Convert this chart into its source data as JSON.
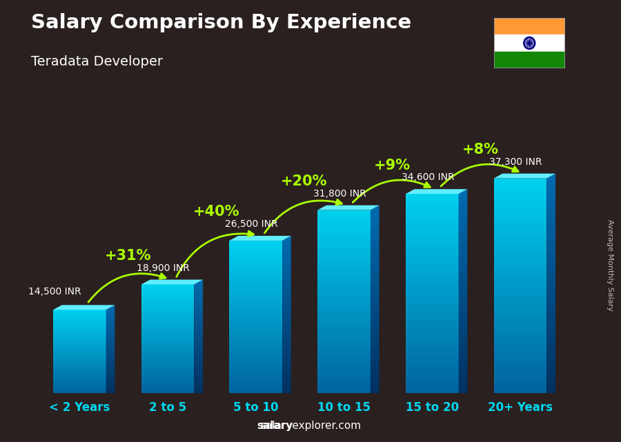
{
  "title": "Salary Comparison By Experience",
  "subtitle": "Teradata Developer",
  "categories": [
    "< 2 Years",
    "2 to 5",
    "5 to 10",
    "10 to 15",
    "15 to 20",
    "20+ Years"
  ],
  "values": [
    14500,
    18900,
    26500,
    31800,
    34600,
    37300
  ],
  "labels": [
    "14,500 INR",
    "18,900 INR",
    "26,500 INR",
    "31,800 INR",
    "34,600 INR",
    "37,300 INR"
  ],
  "pct_changes": [
    "+31%",
    "+40%",
    "+20%",
    "+9%",
    "+8%"
  ],
  "bar_color_face": "#00c8e8",
  "bar_color_left": "#00a8c8",
  "bar_color_top": "#80eeff",
  "bar_color_right": "#0060a0",
  "bg_color": "#2a2020",
  "title_color": "#ffffff",
  "subtitle_color": "#ffffff",
  "label_color": "#ffffff",
  "xticklabel_color": "#00d8f0",
  "pct_color": "#aaff00",
  "watermark_normal": "explorer.com",
  "watermark_bold": "salary",
  "ylabel_rotated": "Average Monthly Salary",
  "bar_width": 0.6,
  "ylim_max": 46000,
  "flag_colors": [
    "#FF9933",
    "#ffffff",
    "#138808"
  ],
  "chakra_color": "#000080"
}
